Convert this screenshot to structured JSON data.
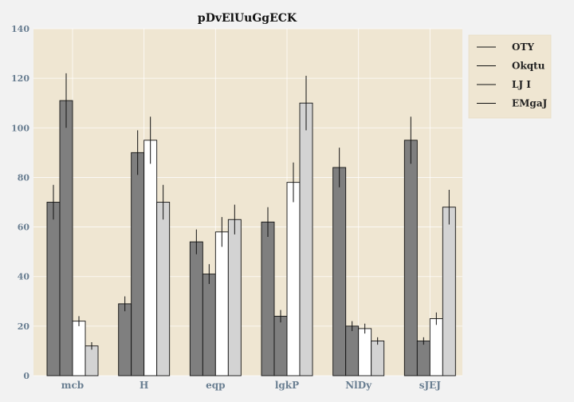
{
  "chart_data": {
    "type": "bar",
    "title": "pDvElUuGgECK",
    "xlabel": "",
    "ylabel": "",
    "ylim": [
      0,
      140
    ],
    "yticks": [
      0,
      20,
      40,
      60,
      80,
      100,
      120,
      140
    ],
    "categories": [
      "mcb",
      "H",
      "eqp",
      "lgkP",
      "NlDy",
      "sJEJ"
    ],
    "grid": true,
    "legend_position": "top-right",
    "plot_background": "#efe6d2",
    "series": [
      {
        "name": "OTY",
        "color": "#7f7f7f",
        "values": [
          70,
          29,
          54,
          62,
          84,
          95
        ],
        "errors": [
          7,
          3,
          5,
          6,
          8,
          9.5
        ]
      },
      {
        "name": "Okqtu",
        "color": "#7f7f7f",
        "values": [
          111,
          90,
          41,
          24,
          20,
          14
        ],
        "errors": [
          11,
          9,
          4,
          2.5,
          2,
          1.5
        ]
      },
      {
        "name": "LJ I",
        "color": "#ffffff",
        "values": [
          22,
          95,
          58,
          78,
          19,
          23
        ],
        "errors": [
          2,
          9.5,
          6,
          8,
          2,
          2.5
        ]
      },
      {
        "name": "EMgaJ",
        "color": "#d3d3d3",
        "values": [
          12,
          70,
          63,
          110,
          14,
          68
        ],
        "errors": [
          1.5,
          7,
          6,
          11,
          1.5,
          7
        ]
      }
    ]
  }
}
